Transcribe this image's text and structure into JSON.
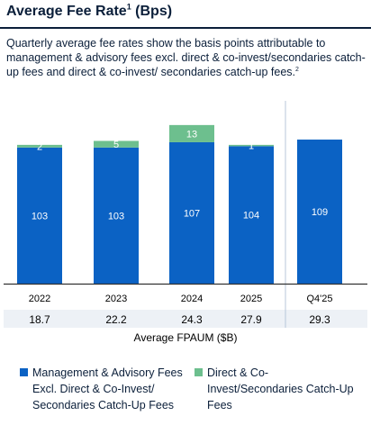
{
  "header": {
    "title": "Average Fee Rate",
    "title_sup": "1",
    "title_suffix": " (Bps)",
    "subtitle": "Quarterly average fee rates show the basis points attributable to management & advisory fees excl. direct & co-invest/secondaries catch-up fees and direct & co-invest/ secondaries catch-up fees.",
    "subtitle_sup": "2"
  },
  "chart_data": {
    "type": "bar",
    "stacked": true,
    "categories": [
      "2022",
      "2023",
      "2024",
      "2025",
      "Q4'25"
    ],
    "series": [
      {
        "name": "Management & Advisory Fees Excl. Direct & Co-Invest/ Secondaries Catch-Up Fees",
        "color": "#0b62c4",
        "values": [
          103,
          103,
          107,
          104,
          109
        ]
      },
      {
        "name": "Direct & Co-Invest/Secondaries Catch-Up Fees",
        "color": "#6dbf8e",
        "values": [
          2,
          5,
          13,
          1,
          null
        ]
      }
    ],
    "ylim": [
      0,
      124
    ],
    "secondary_row": {
      "label": "Average FPAUM ($B)",
      "values": [
        "18.7",
        "22.2",
        "24.3",
        "27.9",
        "29.3"
      ]
    },
    "separator_before": "Q4'25",
    "colors": {
      "axis": "#333333",
      "separator": "#b8c7d9",
      "row_band": "#edf1f6",
      "text_dark": "#0b1f3a"
    }
  },
  "legend": {
    "item1_lines": [
      "Management & Advisory Fees",
      "Excl. Direct & Co-Invest/",
      "Secondaries Catch-Up Fees"
    ],
    "item2_lines": [
      "Direct & Co-",
      "Invest/Secondaries Catch-Up",
      "Fees"
    ]
  }
}
